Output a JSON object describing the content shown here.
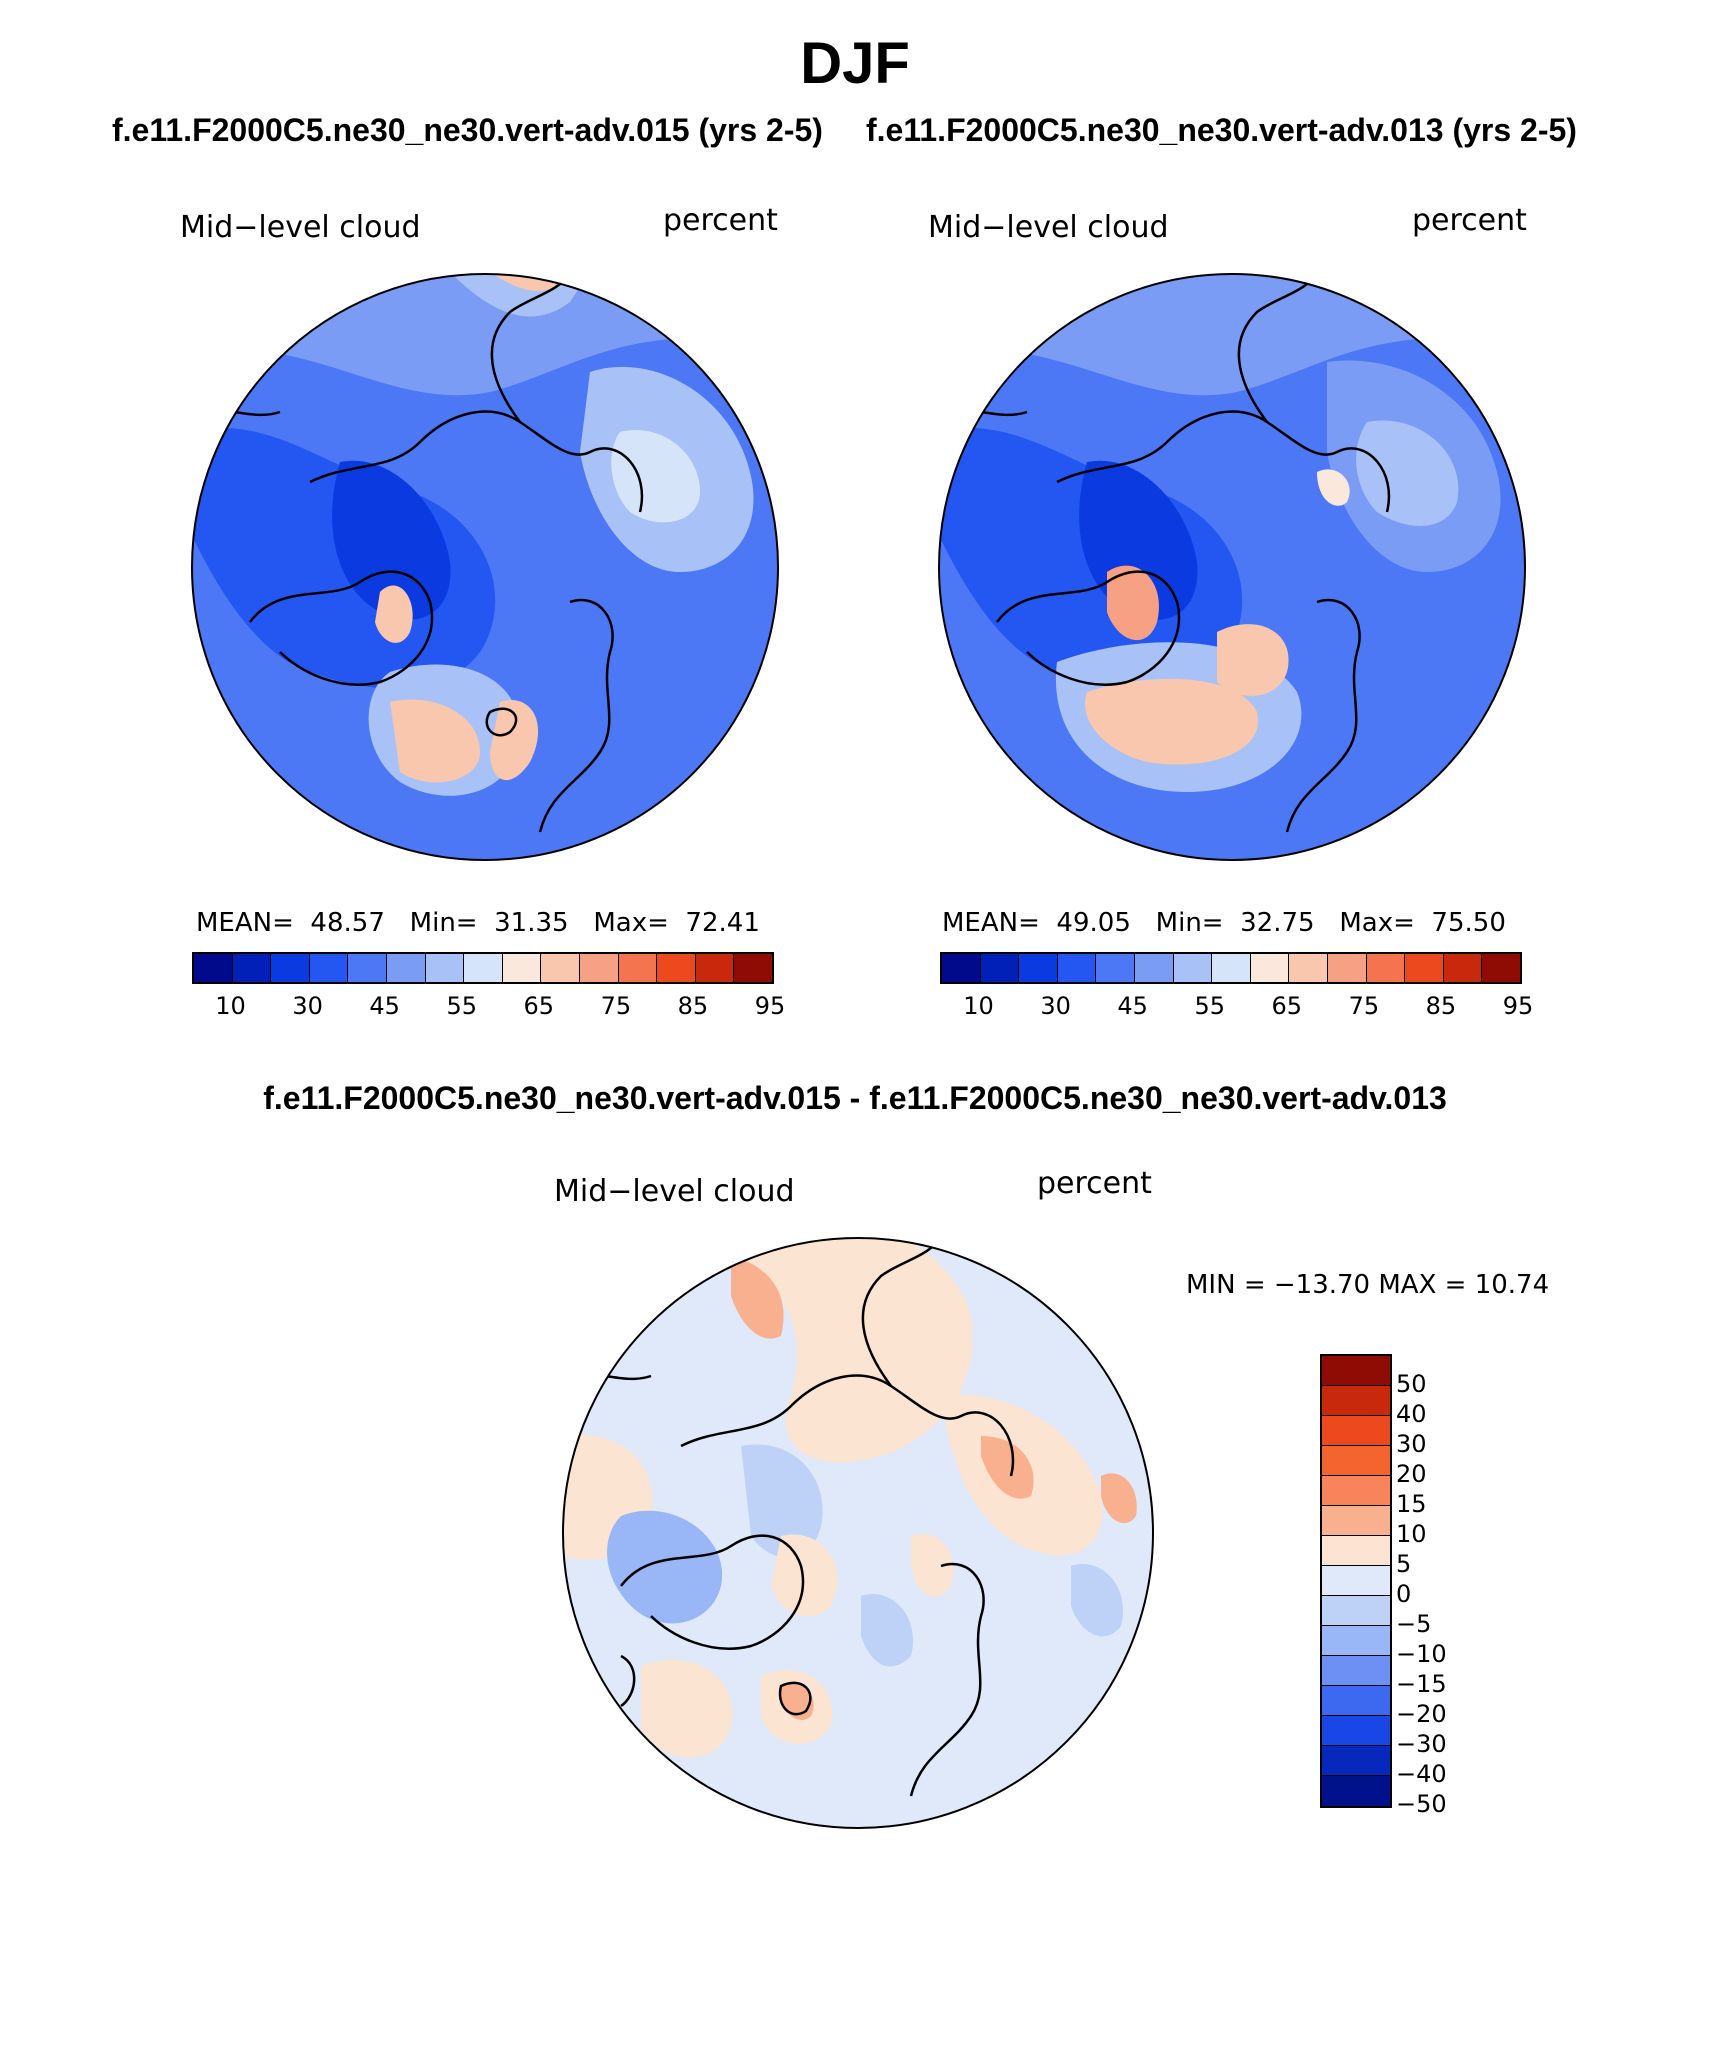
{
  "season": "DJF",
  "panels": [
    {
      "title": "f.e11.F2000C5.ne30_ne30.vert-adv.015 (yrs 2-5)",
      "variable": "Mid−level cloud",
      "units": "percent",
      "mean_label": "MEAN=",
      "mean": "48.57",
      "min_label": "Min=",
      "min": "31.35",
      "max_label": "Max=",
      "max": "72.41"
    },
    {
      "title": "f.e11.F2000C5.ne30_ne30.vert-adv.013 (yrs 2-5)",
      "variable": "Mid−level cloud",
      "units": "percent",
      "mean_label": "MEAN=",
      "mean": "49.05",
      "min_label": "Min=",
      "min": "32.75",
      "max_label": "Max=",
      "max": "75.50"
    }
  ],
  "diff_panel": {
    "title": "f.e11.F2000C5.ne30_ne30.vert-adv.015 - f.e11.F2000C5.ne30_ne30.vert-adv.013",
    "variable": "Mid−level cloud",
    "units": "percent",
    "minmax": "MIN = −13.70 MAX =   10.74"
  },
  "colorbar_abs": {
    "colors": [
      "#000a8a",
      "#0020b8",
      "#0a3ae0",
      "#2457f2",
      "#4c78f5",
      "#7b9cf5",
      "#a8c2f7",
      "#d5e4f8",
      "#fbe8dc",
      "#f9c6ae",
      "#f7a184",
      "#f47450",
      "#ec4a1e",
      "#c8280c",
      "#8f0c05"
    ],
    "ticks": [
      "10",
      "30",
      "45",
      "55",
      "65",
      "75",
      "85",
      "95"
    ]
  },
  "colorbar_diff": {
    "colors": [
      "#8f0c05",
      "#c8280c",
      "#ec4a1e",
      "#f4642e",
      "#f7845a",
      "#f9b08e",
      "#fbe4d2",
      "#dfe9f9",
      "#bed2f8",
      "#99b6f6",
      "#6d90f4",
      "#3d68f0",
      "#1847e6",
      "#0628bd",
      "#00118c"
    ],
    "ticks": [
      "50",
      "40",
      "30",
      "20",
      "15",
      "10",
      "5",
      "0",
      "−5",
      "−10",
      "−15",
      "−20",
      "−30",
      "−40",
      "−50"
    ]
  }
}
